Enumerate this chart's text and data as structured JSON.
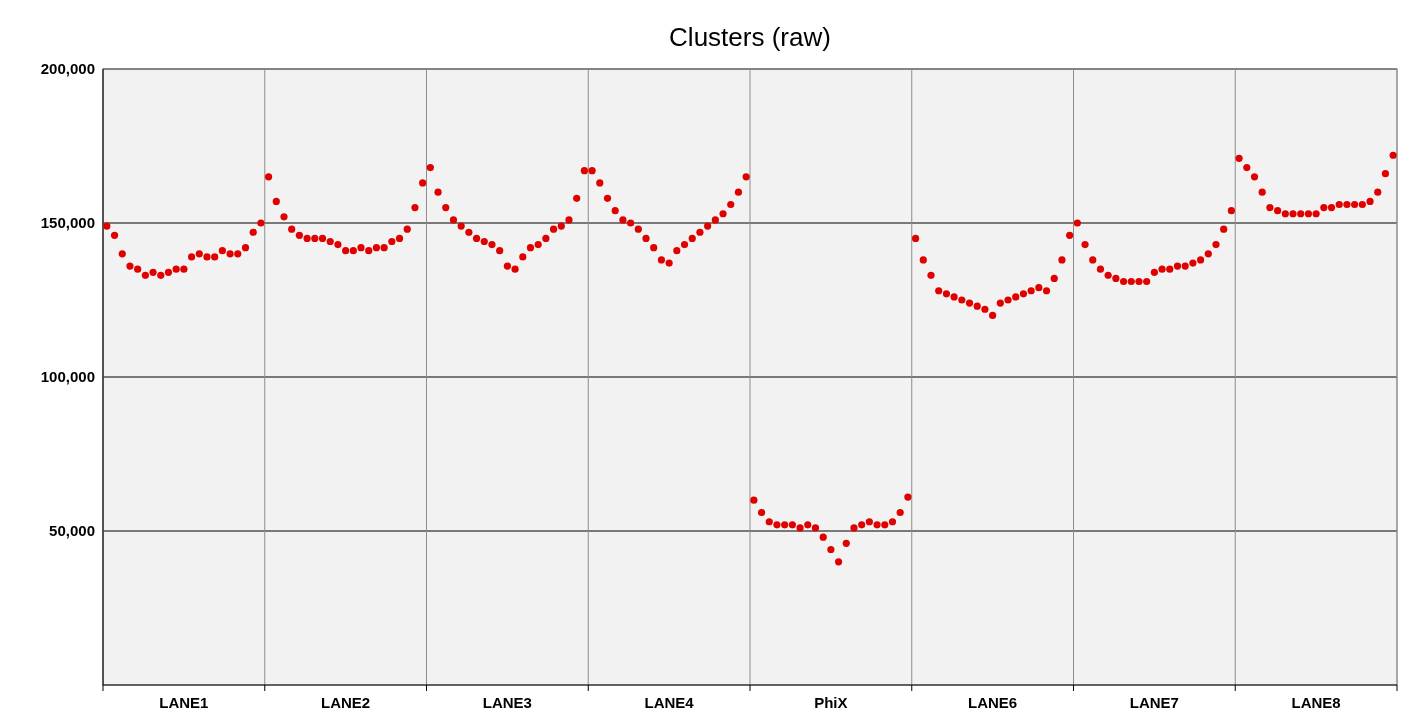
{
  "chart_data": {
    "type": "scatter",
    "title": "Clusters (raw)",
    "ylim": [
      0,
      200000
    ],
    "categories": [
      null,
      null,
      null,
      null,
      null,
      null,
      null,
      null,
      null,
      null,
      "LANE1",
      null,
      null,
      null,
      null,
      null,
      null,
      null,
      null,
      null,
      null,
      null,
      null,
      null,
      null,
      null,
      null,
      null,
      null,
      null,
      null,
      "LANE2",
      null,
      null,
      null,
      null,
      null,
      null,
      null,
      null,
      null,
      null,
      null,
      null,
      null,
      null,
      null,
      null,
      null,
      null,
      null,
      null,
      "LANE3",
      null,
      null,
      null,
      null,
      null,
      null,
      null,
      null,
      null,
      null,
      null,
      null,
      null,
      null,
      null,
      null,
      null,
      null,
      null,
      null,
      "LANE4",
      null,
      null,
      null,
      null,
      null,
      null,
      null,
      null,
      null,
      null,
      null,
      null,
      null,
      null,
      null,
      null,
      null,
      null,
      null,
      null,
      "PhiX",
      null,
      null,
      null,
      null,
      null,
      null,
      null,
      null,
      null,
      null,
      null,
      null,
      null,
      null,
      null,
      null,
      null,
      null,
      null,
      null,
      "LANE6",
      null,
      null,
      null,
      null,
      null,
      null,
      null,
      null,
      null,
      null,
      null,
      null,
      null,
      null,
      null,
      null,
      null,
      null,
      null,
      null,
      "LANE7",
      null,
      null,
      null,
      null,
      null,
      null,
      null,
      null,
      null,
      null,
      null,
      null,
      null,
      null,
      null,
      null,
      null,
      null,
      null,
      null,
      "LANE8",
      null,
      null,
      null,
      null,
      null,
      null,
      null,
      null,
      null,
      null
    ],
    "yticks": [
      {
        "value": 50000,
        "label": "50,000"
      },
      {
        "value": 100000,
        "label": "100,000"
      },
      {
        "value": 150000,
        "label": "150,000"
      },
      {
        "value": 200000,
        "label": "200,000"
      }
    ],
    "grid": true,
    "marker": "circle",
    "series": [
      {
        "color": "#e00000",
        "values": [
          149000,
          146000,
          140000,
          136000,
          135000,
          133000,
          134000,
          133000,
          134000,
          135000,
          135000,
          139000,
          140000,
          139000,
          139000,
          141000,
          140000,
          140000,
          142000,
          147000,
          150000,
          165000,
          157000,
          152000,
          148000,
          146000,
          145000,
          145000,
          145000,
          144000,
          143000,
          141000,
          141000,
          142000,
          141000,
          142000,
          142000,
          144000,
          145000,
          148000,
          155000,
          163000,
          168000,
          160000,
          155000,
          151000,
          149000,
          147000,
          145000,
          144000,
          143000,
          141000,
          136000,
          135000,
          139000,
          142000,
          143000,
          145000,
          148000,
          149000,
          151000,
          158000,
          167000,
          167000,
          163000,
          158000,
          154000,
          151000,
          150000,
          148000,
          145000,
          142000,
          138000,
          137000,
          141000,
          143000,
          145000,
          147000,
          149000,
          151000,
          153000,
          156000,
          160000,
          165000,
          60000,
          56000,
          53000,
          52000,
          52000,
          52000,
          51000,
          52000,
          51000,
          48000,
          44000,
          40000,
          46000,
          51000,
          52000,
          53000,
          52000,
          52000,
          53000,
          56000,
          61000,
          145000,
          138000,
          133000,
          128000,
          127000,
          126000,
          125000,
          124000,
          123000,
          122000,
          120000,
          124000,
          125000,
          126000,
          127000,
          128000,
          129000,
          128000,
          132000,
          138000,
          146000,
          150000,
          143000,
          138000,
          135000,
          133000,
          132000,
          131000,
          131000,
          131000,
          131000,
          134000,
          135000,
          135000,
          136000,
          136000,
          137000,
          138000,
          140000,
          143000,
          148000,
          154000,
          171000,
          168000,
          165000,
          160000,
          155000,
          154000,
          153000,
          153000,
          153000,
          153000,
          153000,
          155000,
          155000,
          156000,
          156000,
          156000,
          156000,
          157000,
          160000,
          166000,
          172000
        ]
      }
    ]
  }
}
